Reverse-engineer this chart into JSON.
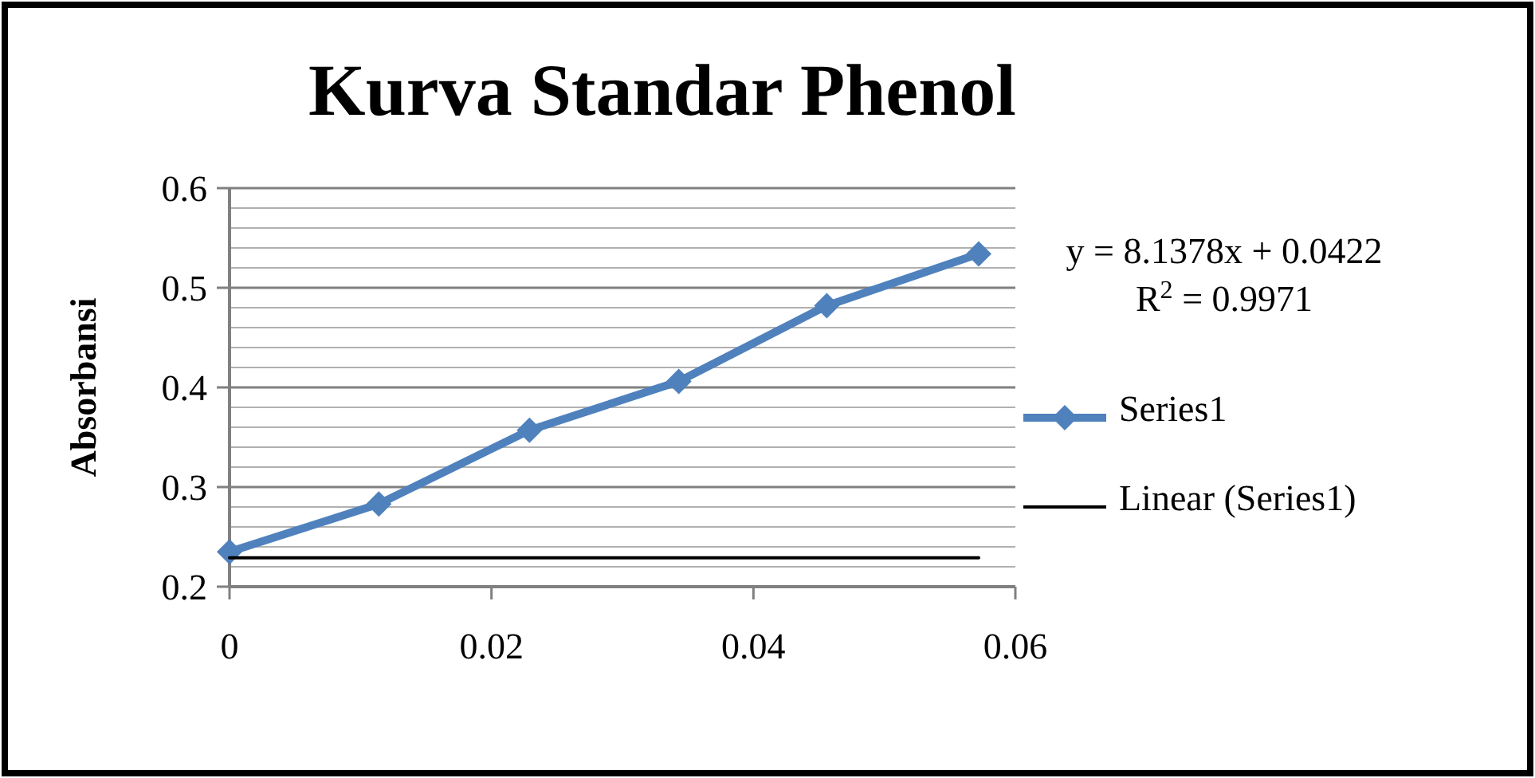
{
  "chart_data": {
    "type": "line",
    "title": "Kurva Standar Phenol",
    "ylabel": "Absorbansi",
    "x": [
      0,
      0.0114,
      0.0229,
      0.0343,
      0.0456,
      0.0572
    ],
    "series": [
      {
        "name": "Series1",
        "color": "#4f81bd",
        "values": [
          0.235,
          0.283,
          0.357,
          0.406,
          0.482,
          0.534
        ],
        "marker": "diamond"
      },
      {
        "name": "Linear (Series1)",
        "color": "#000000",
        "type": "line",
        "x": [
          0,
          0.0572
        ],
        "values": [
          0.229,
          0.229
        ],
        "marker": "none"
      }
    ],
    "xlim": [
      0,
      0.06
    ],
    "xticks": [
      0,
      0.02,
      0.04,
      0.06
    ],
    "ylim": [
      0.2,
      0.6
    ],
    "yticks": [
      0.2,
      0.3,
      0.4,
      0.5,
      0.6
    ],
    "grid": "y",
    "legend": "right",
    "annotations": [
      "y = 8.1378x + 0.0422",
      "R$^{2}$ = 0.9971"
    ]
  }
}
